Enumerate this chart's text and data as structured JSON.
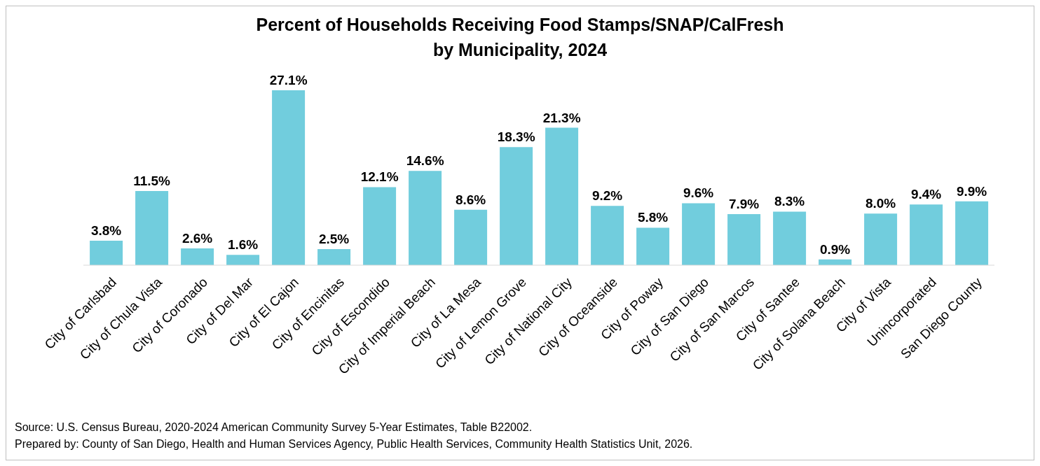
{
  "chart_data": {
    "type": "bar",
    "title": "Percent of Households Receiving Food Stamps/SNAP/CalFresh\nby Municipality, 2024",
    "categories": [
      "City of Carlsbad",
      "City of Chula Vista",
      "City of Coronado",
      "City of Del Mar",
      "City of El Cajon",
      "City of Encinitas",
      "City of Escondido",
      "City of Imperial Beach",
      "City of La Mesa",
      "City of Lemon Grove",
      "City of National City",
      "City of Oceanside",
      "City of Poway",
      "City of San Diego",
      "City of San Marcos",
      "City of Santee",
      "City of Solana Beach",
      "City of Vista",
      "Unincorporated",
      "San Diego County"
    ],
    "values": [
      3.8,
      11.5,
      2.6,
      1.6,
      27.1,
      2.5,
      12.1,
      14.6,
      8.6,
      18.3,
      21.3,
      9.2,
      5.8,
      9.6,
      7.9,
      8.3,
      0.9,
      8.0,
      9.4,
      9.9
    ],
    "value_labels": [
      "3.8%",
      "11.5%",
      "2.6%",
      "1.6%",
      "27.1%",
      "2.5%",
      "12.1%",
      "14.6%",
      "8.6%",
      "18.3%",
      "21.3%",
      "9.2%",
      "5.8%",
      "9.6%",
      "7.9%",
      "8.3%",
      "0.9%",
      "8.0%",
      "9.4%",
      "9.9%"
    ],
    "color": "#71cddd",
    "grid": false,
    "legend": false,
    "annotations": [
      "Source: U.S. Census Bureau, 2020-2024 American Community Survey 5-Year Estimates, Table B22002.",
      "Prepared by: County of San Diego, Health and Human Services Agency, Public Health Services, Community Health Statistics Unit, 2026."
    ]
  }
}
